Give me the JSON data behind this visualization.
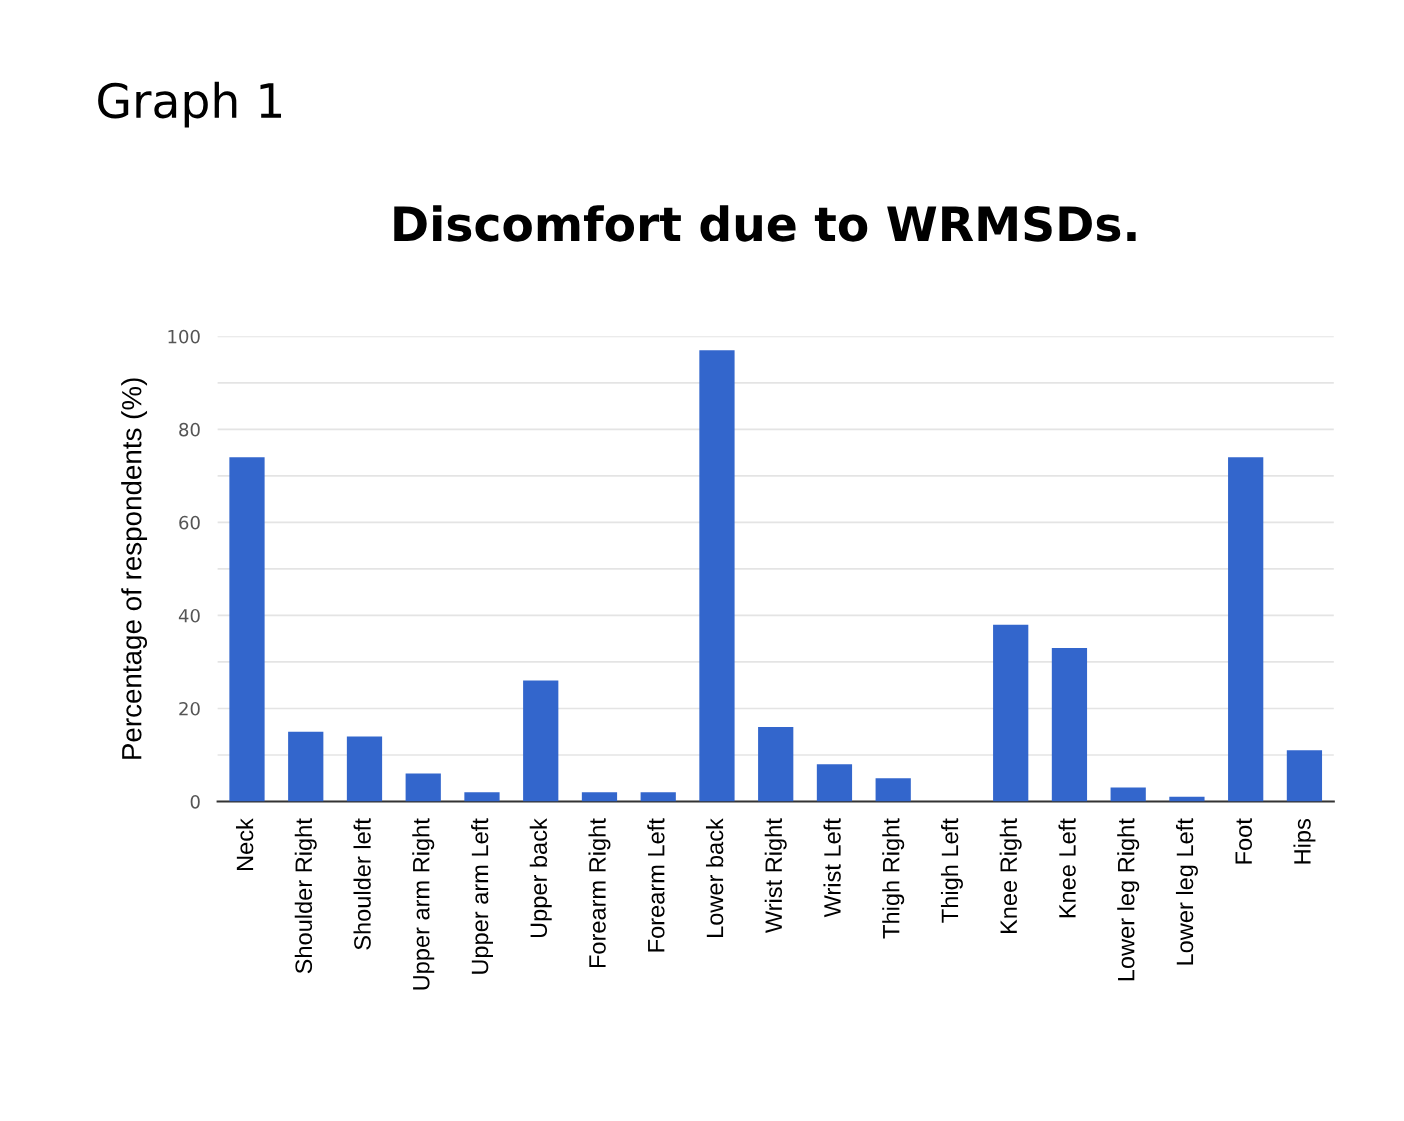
{
  "chart_data": {
    "type": "bar",
    "title": "Discomfort due to WRMSDs.",
    "annotations": [
      "Graph 1"
    ],
    "ylabel": "Percentage of respondents (%)",
    "categories": [
      "Neck",
      "Shoulder Right",
      "Shoulder left",
      "Upper arm Right",
      "Upper arm Left",
      "Upper back",
      "Forearm Right",
      "Forearm Left",
      "Lower back",
      "Wrist Right",
      "Wrist Left",
      "Thigh Right",
      "Thigh Left",
      "Knee Right",
      "Knee Left",
      "Lower leg Right",
      "Lower leg Left",
      "Foot",
      "Hips"
    ],
    "values": [
      74,
      15,
      14,
      6,
      2,
      26,
      2,
      2,
      97,
      16,
      8,
      5,
      0,
      38,
      33,
      3,
      1,
      74,
      11
    ],
    "color": "#3366cc",
    "ylim": [
      0,
      100
    ],
    "yticks": [
      0,
      {
        "value": 10,
        "label": null
      },
      20,
      {
        "value": 30,
        "label": null
      },
      40,
      {
        "value": 50,
        "label": null
      },
      60,
      {
        "value": 70,
        "label": null
      },
      80,
      {
        "value": 90,
        "label": null
      },
      100
    ],
    "grid": "y"
  }
}
